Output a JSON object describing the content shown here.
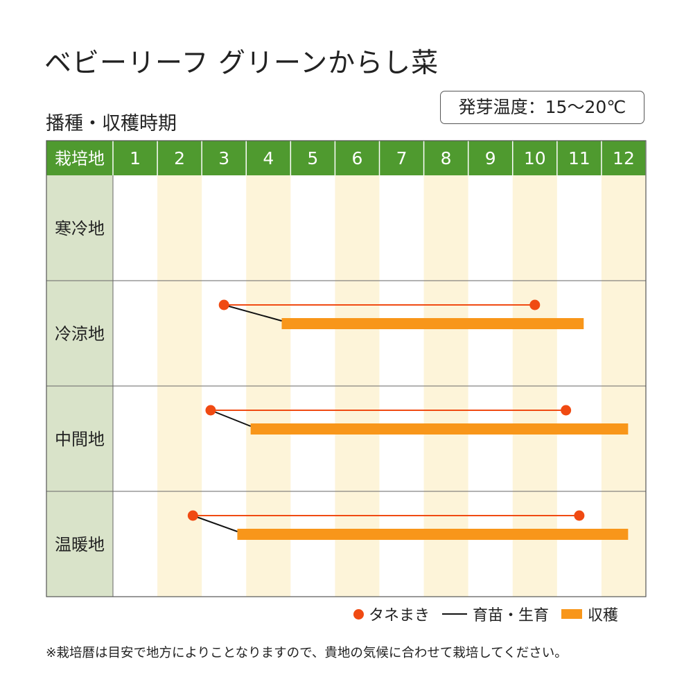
{
  "title": "ベビーリーフ グリーンからし菜",
  "subtitle": "播種・収穫時期",
  "temperature": "発芽温度：15～20℃",
  "legend": {
    "sowing": "タネまき",
    "nursery": "育苗・生育",
    "harvest": "収穫"
  },
  "note": "※栽培暦は目安で地方によりことなりますので、貴地の気候に合わせて栽培してください。",
  "colors": {
    "header_green": "#4f9a2f",
    "row_label_bg": "#d9e3c9",
    "stripe": "#fdf4d9",
    "sowing": "#f04a12",
    "harvest": "#f8961a",
    "nursery": "#111111"
  },
  "chart_data": {
    "type": "gantt",
    "corner_label": "栽培地",
    "months": [
      "1",
      "2",
      "3",
      "4",
      "5",
      "6",
      "7",
      "8",
      "9",
      "10",
      "11",
      "12"
    ],
    "regions": [
      {
        "name": "寒冷地",
        "sowing": null,
        "harvest": null
      },
      {
        "name": "冷涼地",
        "sowing": [
          3.5,
          10.5
        ],
        "harvest": [
          4.8,
          11.6
        ]
      },
      {
        "name": "中間地",
        "sowing": [
          3.2,
          11.2
        ],
        "harvest": [
          4.1,
          12.6
        ]
      },
      {
        "name": "温暖地",
        "sowing": [
          2.8,
          11.5
        ],
        "harvest": [
          3.8,
          12.6
        ]
      }
    ]
  }
}
